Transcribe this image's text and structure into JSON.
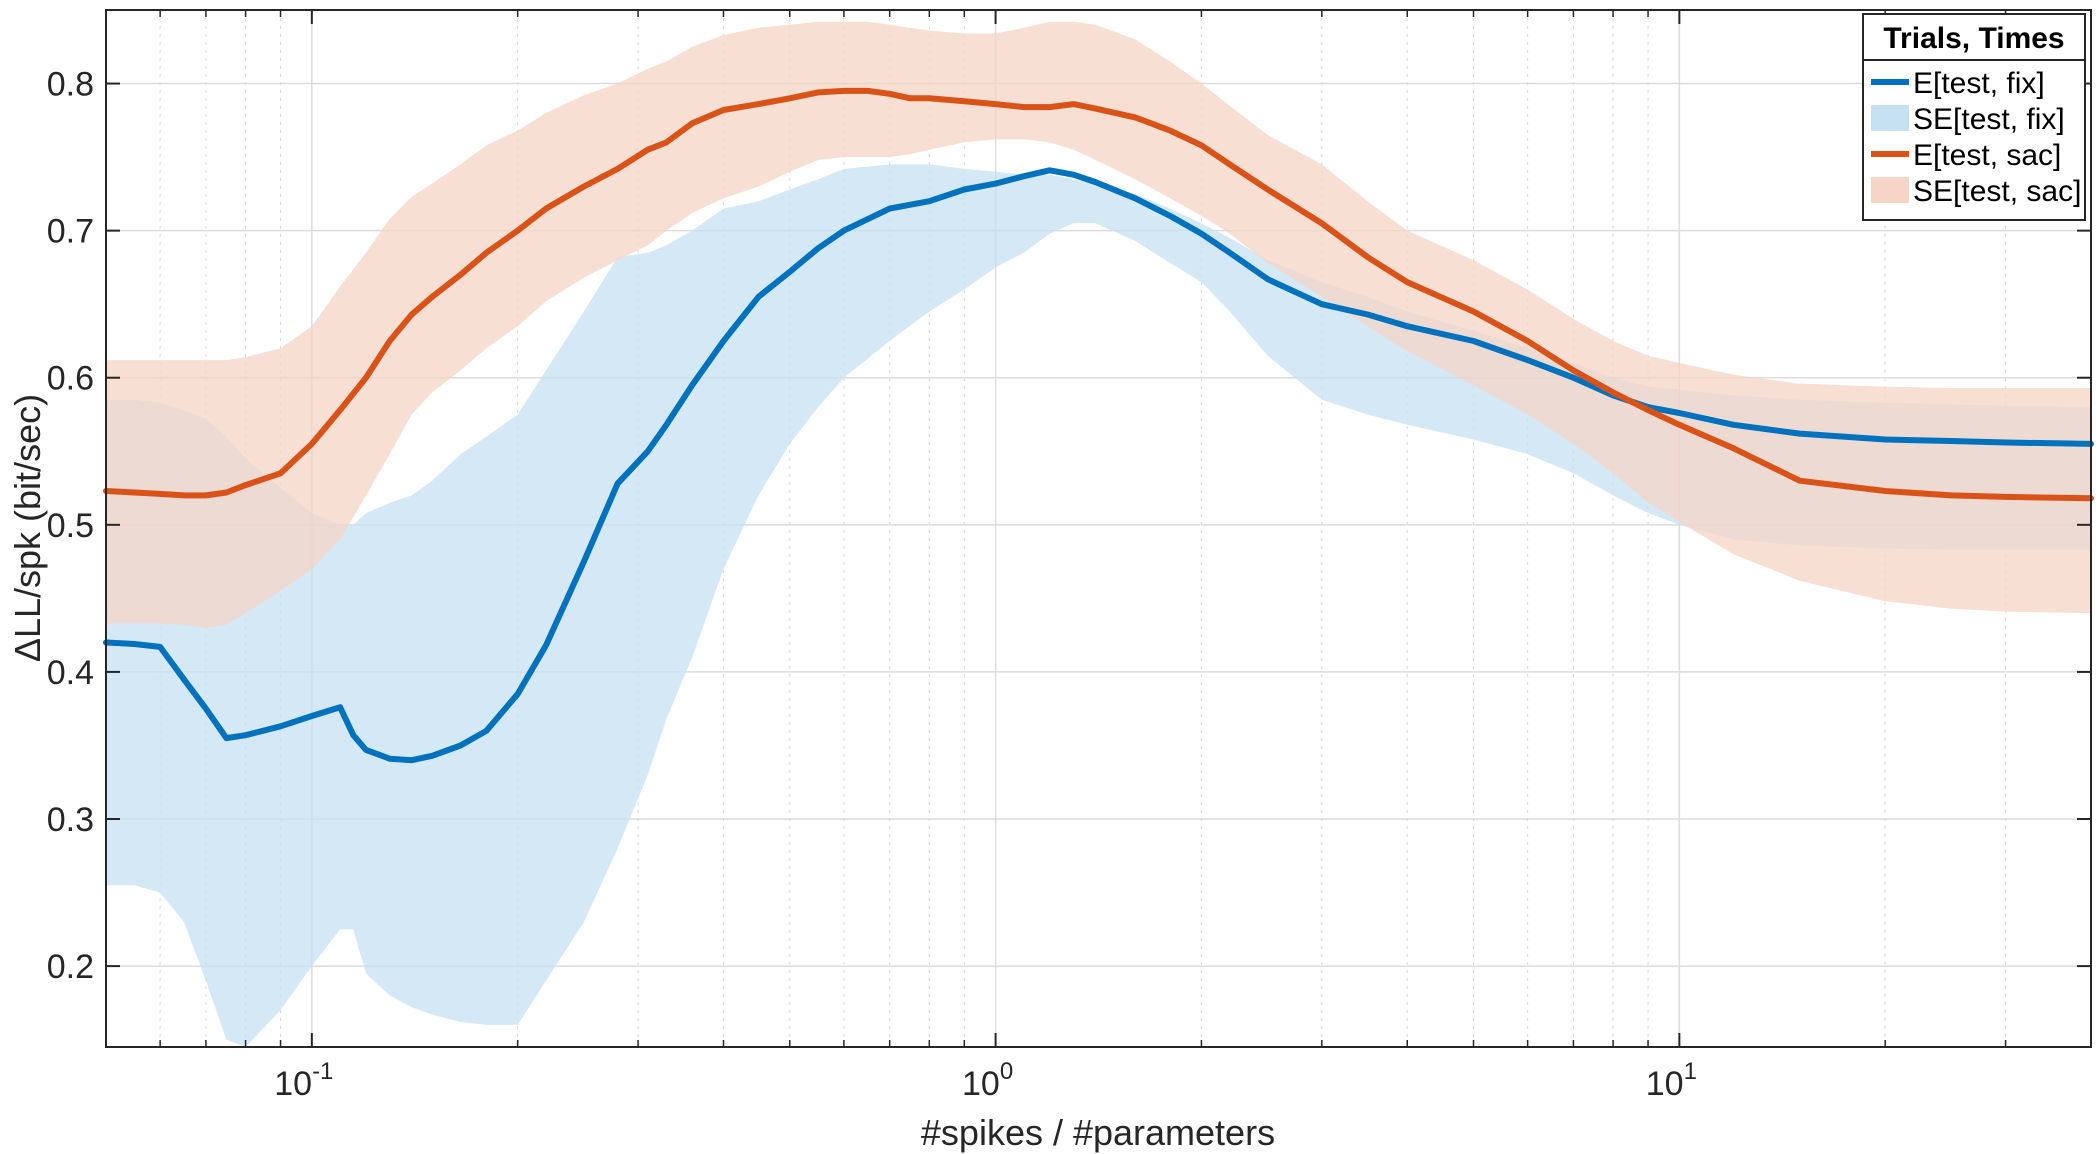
{
  "chart_data": {
    "type": "line",
    "xscale": "log",
    "xlim": [
      0.05,
      40
    ],
    "ylim": [
      0.145,
      0.85
    ],
    "xlabel": "#spikes / #parameters",
    "ylabel": "ΔLL/spk (bit/sec)",
    "grid": true,
    "legend_position": "top-right",
    "legend_title": "Trials, Times",
    "yticks": [
      0.2,
      0.3,
      0.4,
      0.5,
      0.6,
      0.7,
      0.8
    ],
    "ytick_labels": [
      "0.2",
      "0.3",
      "0.4",
      "0.5",
      "0.6",
      "0.7",
      "0.8"
    ],
    "xticks": [
      0.1,
      1,
      10
    ],
    "xtick_labels": [
      {
        "base": "10",
        "exp": "-1"
      },
      {
        "base": "10",
        "exp": "0"
      },
      {
        "base": "10",
        "exp": "1"
      }
    ],
    "series": [
      {
        "name": "E[test, fix]",
        "color": "#0072BD",
        "x": [
          0.05,
          0.055,
          0.06,
          0.065,
          0.07,
          0.075,
          0.08,
          0.09,
          0.1,
          0.11,
          0.115,
          0.12,
          0.13,
          0.14,
          0.15,
          0.165,
          0.18,
          0.2,
          0.22,
          0.25,
          0.28,
          0.31,
          0.33,
          0.36,
          0.4,
          0.45,
          0.5,
          0.55,
          0.6,
          0.7,
          0.8,
          0.9,
          1.0,
          1.1,
          1.2,
          1.3,
          1.4,
          1.6,
          1.8,
          2.0,
          2.2,
          2.5,
          3.0,
          3.5,
          4.0,
          5.0,
          6.0,
          7.0,
          8.0,
          9.0,
          10,
          12,
          15,
          20,
          25,
          30,
          40
        ],
        "y": [
          0.42,
          0.419,
          0.417,
          0.395,
          0.375,
          0.355,
          0.357,
          0.363,
          0.37,
          0.376,
          0.357,
          0.347,
          0.341,
          0.34,
          0.343,
          0.35,
          0.36,
          0.385,
          0.418,
          0.475,
          0.528,
          0.55,
          0.568,
          0.595,
          0.625,
          0.655,
          0.672,
          0.688,
          0.7,
          0.715,
          0.72,
          0.728,
          0.732,
          0.737,
          0.741,
          0.738,
          0.733,
          0.722,
          0.71,
          0.698,
          0.685,
          0.667,
          0.65,
          0.643,
          0.635,
          0.625,
          0.612,
          0.6,
          0.588,
          0.58,
          0.576,
          0.568,
          0.562,
          0.558,
          0.557,
          0.556,
          0.555
        ],
        "lower": [
          0.255,
          0.255,
          0.25,
          0.23,
          0.19,
          0.15,
          0.145,
          0.17,
          0.2,
          0.225,
          0.225,
          0.195,
          0.18,
          0.172,
          0.167,
          0.162,
          0.16,
          0.16,
          0.19,
          0.23,
          0.28,
          0.33,
          0.368,
          0.41,
          0.47,
          0.52,
          0.555,
          0.58,
          0.6,
          0.625,
          0.645,
          0.66,
          0.675,
          0.685,
          0.698,
          0.705,
          0.705,
          0.693,
          0.678,
          0.665,
          0.645,
          0.615,
          0.585,
          0.575,
          0.568,
          0.558,
          0.548,
          0.535,
          0.52,
          0.508,
          0.5,
          0.49,
          0.486,
          0.484,
          0.483,
          0.483,
          0.483
        ],
        "upper": [
          0.585,
          0.585,
          0.583,
          0.578,
          0.572,
          0.56,
          0.545,
          0.525,
          0.508,
          0.5,
          0.5,
          0.508,
          0.515,
          0.52,
          0.53,
          0.548,
          0.56,
          0.575,
          0.605,
          0.645,
          0.682,
          0.685,
          0.69,
          0.7,
          0.715,
          0.72,
          0.728,
          0.735,
          0.742,
          0.745,
          0.745,
          0.742,
          0.74,
          0.738,
          0.738,
          0.735,
          0.732,
          0.725,
          0.715,
          0.705,
          0.695,
          0.68,
          0.665,
          0.655,
          0.645,
          0.632,
          0.62,
          0.61,
          0.6,
          0.594,
          0.592,
          0.588,
          0.585,
          0.583,
          0.582,
          0.581,
          0.58
        ]
      },
      {
        "name": "SE[test, fix]",
        "color": "#C6E2F2",
        "band_of": "E[test, fix]"
      },
      {
        "name": "E[test, sac]",
        "color": "#D95319",
        "x": [
          0.05,
          0.055,
          0.06,
          0.065,
          0.07,
          0.075,
          0.08,
          0.09,
          0.1,
          0.11,
          0.12,
          0.13,
          0.14,
          0.15,
          0.165,
          0.18,
          0.2,
          0.22,
          0.25,
          0.28,
          0.31,
          0.33,
          0.36,
          0.4,
          0.45,
          0.5,
          0.55,
          0.6,
          0.65,
          0.7,
          0.75,
          0.8,
          0.9,
          1.0,
          1.1,
          1.2,
          1.3,
          1.4,
          1.6,
          1.8,
          2.0,
          2.2,
          2.5,
          3.0,
          3.5,
          4.0,
          5.0,
          6.0,
          7.0,
          8.0,
          9.0,
          10,
          12,
          15,
          20,
          25,
          30,
          40
        ],
        "y": [
          0.523,
          0.522,
          0.521,
          0.52,
          0.52,
          0.522,
          0.527,
          0.535,
          0.555,
          0.578,
          0.6,
          0.625,
          0.643,
          0.655,
          0.67,
          0.685,
          0.7,
          0.715,
          0.73,
          0.742,
          0.755,
          0.76,
          0.773,
          0.782,
          0.786,
          0.79,
          0.794,
          0.795,
          0.795,
          0.793,
          0.79,
          0.79,
          0.788,
          0.786,
          0.784,
          0.784,
          0.786,
          0.783,
          0.777,
          0.768,
          0.758,
          0.745,
          0.728,
          0.705,
          0.682,
          0.665,
          0.645,
          0.625,
          0.605,
          0.59,
          0.578,
          0.568,
          0.552,
          0.53,
          0.523,
          0.52,
          0.519,
          0.518
        ],
        "lower": [
          0.433,
          0.433,
          0.433,
          0.432,
          0.43,
          0.432,
          0.44,
          0.455,
          0.47,
          0.49,
          0.52,
          0.548,
          0.575,
          0.59,
          0.605,
          0.62,
          0.635,
          0.652,
          0.668,
          0.68,
          0.69,
          0.7,
          0.712,
          0.722,
          0.73,
          0.74,
          0.748,
          0.75,
          0.75,
          0.75,
          0.752,
          0.755,
          0.76,
          0.762,
          0.762,
          0.76,
          0.755,
          0.748,
          0.735,
          0.722,
          0.71,
          0.698,
          0.678,
          0.655,
          0.635,
          0.618,
          0.595,
          0.575,
          0.555,
          0.535,
          0.515,
          0.502,
          0.48,
          0.462,
          0.448,
          0.443,
          0.441,
          0.44
        ],
        "upper": [
          0.612,
          0.612,
          0.612,
          0.612,
          0.612,
          0.612,
          0.614,
          0.62,
          0.635,
          0.662,
          0.685,
          0.708,
          0.723,
          0.732,
          0.745,
          0.758,
          0.768,
          0.78,
          0.792,
          0.8,
          0.81,
          0.815,
          0.825,
          0.833,
          0.838,
          0.84,
          0.842,
          0.842,
          0.842,
          0.84,
          0.838,
          0.836,
          0.834,
          0.834,
          0.838,
          0.842,
          0.842,
          0.84,
          0.83,
          0.815,
          0.8,
          0.785,
          0.765,
          0.745,
          0.72,
          0.7,
          0.68,
          0.66,
          0.64,
          0.625,
          0.615,
          0.61,
          0.602,
          0.596,
          0.594,
          0.593,
          0.593,
          0.593
        ]
      },
      {
        "name": "SE[test, sac]",
        "color": "#F6D4C6",
        "band_of": "E[test, sac]"
      }
    ]
  }
}
